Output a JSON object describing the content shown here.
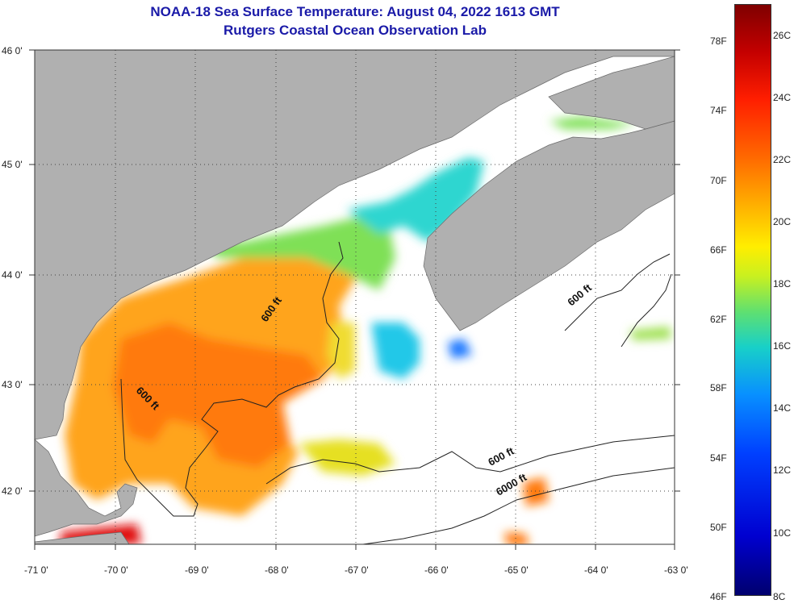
{
  "title": {
    "line1": "NOAA-18 Sea Surface Temperature:  August 04, 2022 1613 GMT",
    "line2": "Rutgers Coastal Ocean Observation Lab"
  },
  "map": {
    "lat_labels": [
      "46 0'",
      "45 0'",
      "44 0'",
      "43 0'",
      "42 0'"
    ],
    "lon_labels": [
      "-71 0'",
      "-70 0'",
      "-69 0'",
      "-68 0'",
      "-67 0'",
      "-66 0'",
      "-65 0'",
      "-64 0'",
      "-63 0'"
    ],
    "lon_range": [
      -71,
      -63
    ],
    "lat_range": [
      41.5,
      46
    ],
    "contour_labels": [
      "600 ft",
      "600 ft",
      "600 ft",
      "600 ft",
      "6000 ft"
    ],
    "land_color": "#b0b0b0",
    "no_data_color": "#ffffff"
  },
  "colorbar": {
    "f_labels": [
      "78F",
      "74F",
      "70F",
      "66F",
      "62F",
      "58F",
      "54F",
      "50F",
      "46F"
    ],
    "c_labels": [
      "26C",
      "24C",
      "22C",
      "20C",
      "18C",
      "16C",
      "14C",
      "12C",
      "10C",
      "8C"
    ],
    "range_c": [
      8,
      27
    ]
  }
}
